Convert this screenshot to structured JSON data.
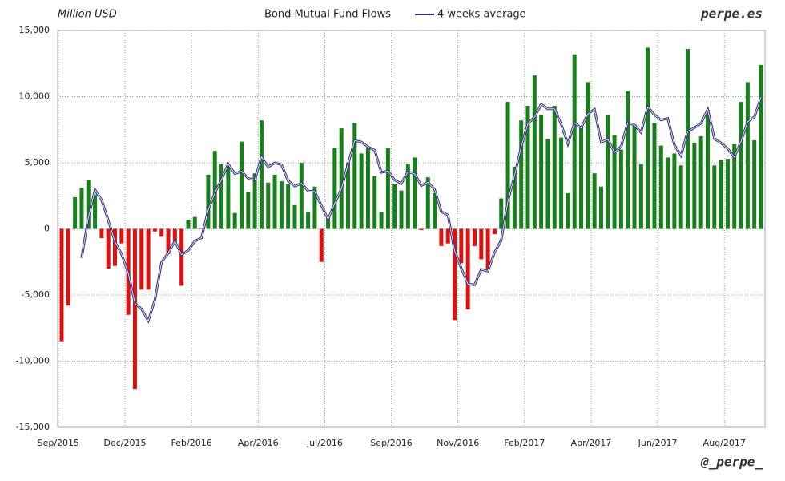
{
  "chart_data": {
    "type": "bar-line",
    "title": "Bond Mutual Fund Flows",
    "y_label": "Million USD",
    "source": "perpe.es",
    "credit": "@_perpe_",
    "categories": [
      "Sep/2015",
      null,
      null,
      null,
      null,
      null,
      null,
      null,
      null,
      null,
      "Dec/2015",
      null,
      null,
      null,
      null,
      null,
      null,
      null,
      null,
      null,
      "Feb/2016",
      null,
      null,
      null,
      null,
      null,
      null,
      null,
      null,
      null,
      "Apr/2016",
      null,
      null,
      null,
      null,
      null,
      null,
      null,
      null,
      null,
      "Jul/2016",
      null,
      null,
      null,
      null,
      null,
      null,
      null,
      null,
      null,
      "Sep/2016",
      null,
      null,
      null,
      null,
      null,
      null,
      null,
      null,
      null,
      "Nov/2016",
      null,
      null,
      null,
      null,
      null,
      null,
      null,
      null,
      null,
      "Feb/2017",
      null,
      null,
      null,
      null,
      null,
      null,
      null,
      null,
      null,
      "Apr/2017",
      null,
      null,
      null,
      null,
      null,
      null,
      null,
      null,
      null,
      "Jun/2017",
      null,
      null,
      null,
      null,
      null,
      null,
      null,
      null,
      null,
      "Aug/2017",
      null,
      null,
      null,
      null,
      null
    ],
    "series": [
      {
        "type": "bar",
        "color": "#17801a",
        "negative_color": "#e01010",
        "values": [
          -8500,
          -5800,
          2400,
          3100,
          3700,
          2600,
          -700,
          -3000,
          -2800,
          -1100,
          -6500,
          -12100,
          -4600,
          -4600,
          -200,
          -600,
          -1900,
          -1000,
          -4300,
          700,
          900,
          0,
          4100,
          5900,
          4900,
          4700,
          1200,
          6600,
          2800,
          4200,
          8200,
          3500,
          4100,
          3600,
          3400,
          1800,
          5000,
          1300,
          3200,
          -2500,
          900,
          6100,
          7600,
          5000,
          8000,
          5700,
          6100,
          4000,
          1300,
          6100,
          3400,
          2900,
          4900,
          5400,
          -100,
          3900,
          2700,
          -1300,
          -1100,
          -6900,
          -2600,
          -6100,
          -1300,
          -2300,
          -3100,
          -400,
          2300,
          9600,
          4700,
          8200,
          9300,
          11600,
          8600,
          6800,
          9300,
          6900,
          2700,
          13200,
          7700,
          11100,
          4200,
          3200,
          8600,
          7100,
          6000,
          10400,
          7900,
          4900,
          13700,
          8000,
          6300,
          5400,
          5700,
          4800,
          13600,
          6500,
          7000,
          9000,
          4800,
          5200,
          5300,
          6400,
          9600,
          11100,
          6700,
          12400
        ]
      },
      {
        "type": "line",
        "name": "4 weeks average",
        "color": "#34347e",
        "values": [
          null,
          null,
          null,
          -2200,
          850,
          2950,
          2175,
          650,
          -975,
          -1900,
          -3350,
          -5625,
          -6075,
          -6950,
          -5375,
          -2500,
          -1825,
          -925,
          -1950,
          -1625,
          -925,
          -675,
          1425,
          2725,
          3725,
          4900,
          4175,
          4350,
          3825,
          3700,
          5450,
          4675,
          5000,
          4850,
          3650,
          3225,
          3450,
          2875,
          2825,
          1750,
          725,
          1925,
          3025,
          4900,
          6675,
          6575,
          6200,
          5950,
          4275,
          4375,
          3700,
          3425,
          4325,
          4150,
          3275,
          3525,
          2975,
          1300,
          1050,
          -1650,
          -2975,
          -4175,
          -4225,
          -3075,
          -3200,
          -1775,
          -875,
          2100,
          4050,
          6200,
          7950,
          8450,
          9425,
          9075,
          9075,
          7900,
          6425,
          8025,
          7625,
          8675,
          9050,
          6550,
          6775,
          5775,
          6225,
          8025,
          7850,
          7300,
          9225,
          8625,
          8225,
          8350,
          6350,
          5550,
          7375,
          7650,
          7975,
          9025,
          6825,
          6500,
          6075,
          5425,
          6625,
          8100,
          8450,
          9950
        ]
      }
    ],
    "ylim": [
      -15000,
      15000
    ],
    "yticks": [
      {
        "value": -15000,
        "label": "-15,000"
      },
      {
        "value": -10000,
        "label": "-10,000"
      },
      {
        "value": -5000,
        "label": "-5,000"
      },
      0,
      {
        "value": 5000,
        "label": "5,000"
      },
      {
        "value": 10000,
        "label": "10,000"
      },
      {
        "value": 15000,
        "label": "15,000"
      }
    ],
    "grid": true
  }
}
